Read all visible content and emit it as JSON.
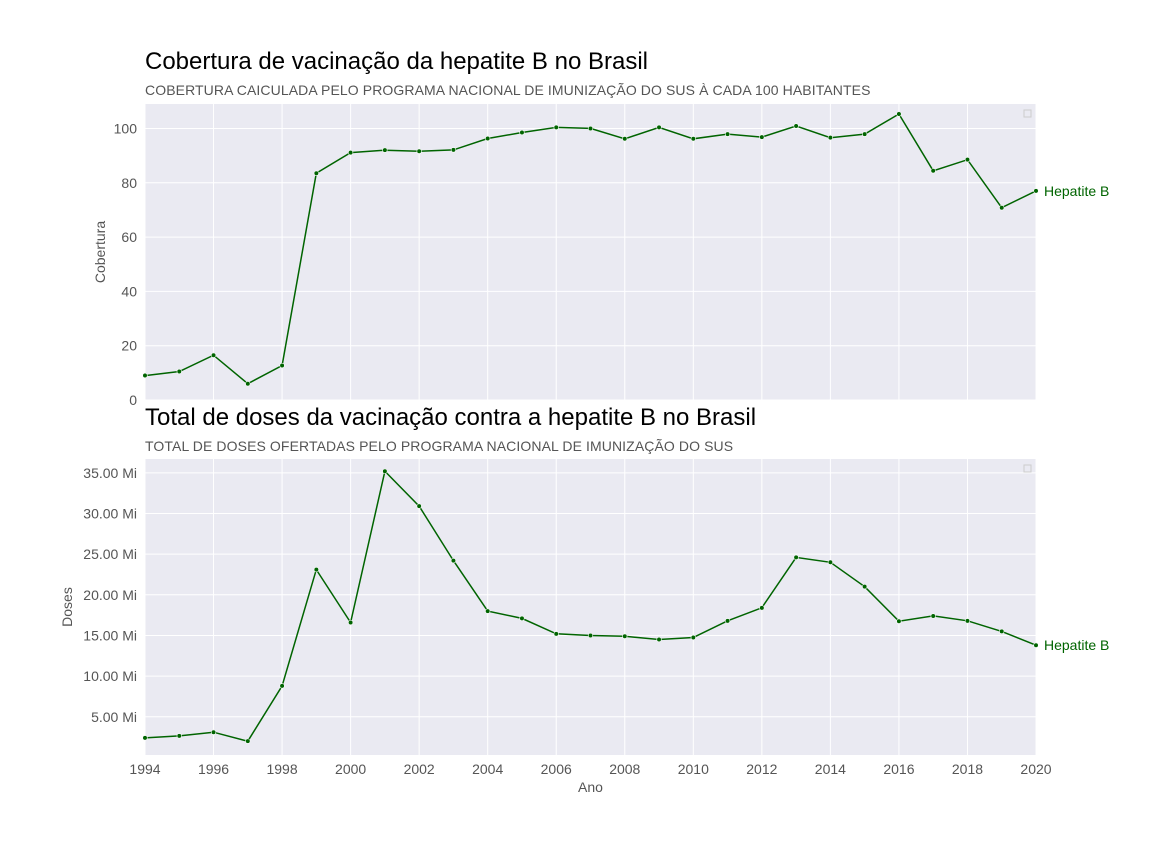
{
  "colors": {
    "series": "#006400",
    "panel": "#eaeaf2",
    "grid": "#ffffff"
  },
  "chart_data": [
    {
      "type": "line",
      "title": "Cobertura de vacinação da hepatite B no Brasil",
      "subtitle": "COBERTURA CAICULADA PELO PROGRAMA NACIONAL DE IMUNIZAÇÃO DO SUS À CADA 100 HABITANTES",
      "xlabel": "",
      "ylabel": "Cobertura",
      "xlim": [
        1994,
        2020
      ],
      "ylim": [
        0,
        109
      ],
      "yticks": [
        0,
        20,
        40,
        60,
        80,
        100
      ],
      "ytick_labels": [
        "0",
        "20",
        "40",
        "60",
        "80",
        "100"
      ],
      "grid": true,
      "legend": "top-right",
      "series": [
        {
          "name": "Hepatite B",
          "x": [
            1994,
            1995,
            1996,
            1997,
            1998,
            1999,
            2000,
            2001,
            2002,
            2003,
            2004,
            2005,
            2006,
            2007,
            2008,
            2009,
            2010,
            2011,
            2012,
            2013,
            2014,
            2015,
            2016,
            2017,
            2018,
            2019,
            2020
          ],
          "values": [
            9,
            10.5,
            16.5,
            6,
            12.7,
            83.5,
            91.1,
            92,
            91.6,
            92.1,
            96.3,
            98.5,
            100.4,
            100,
            96.2,
            100.4,
            96.2,
            97.9,
            96.8,
            100.9,
            96.6,
            97.9,
            105.3,
            84.4,
            88.5,
            70.8,
            77
          ]
        }
      ]
    },
    {
      "type": "line",
      "title": "Total de doses da vacinação contra a hepatite B no Brasil",
      "subtitle": "TOTAL DE DOSES OFERTADAS PELO PROGRAMA NACIONAL DE IMUNIZAÇÃO DO SUS",
      "xlabel": "Ano",
      "ylabel": "Doses",
      "xlim": [
        1994,
        2020
      ],
      "ylim": [
        0.3,
        36.7
      ],
      "xticks": [
        1994,
        1996,
        1998,
        2000,
        2002,
        2004,
        2006,
        2008,
        2010,
        2012,
        2014,
        2016,
        2018,
        2020
      ],
      "xtick_labels": [
        "1994",
        "1996",
        "1998",
        "2000",
        "2002",
        "2004",
        "2006",
        "2008",
        "2010",
        "2012",
        "2014",
        "2016",
        "2018",
        "2020"
      ],
      "yticks": [
        5,
        10,
        15,
        20,
        25,
        30,
        35
      ],
      "ytick_labels": [
        "5.00 Mi",
        "10.00 Mi",
        "15.00 Mi",
        "20.00 Mi",
        "25.00 Mi",
        "30.00 Mi",
        "35.00 Mi"
      ],
      "grid": true,
      "legend": "top-right",
      "series": [
        {
          "name": "Hepatite B",
          "x": [
            1994,
            1995,
            1996,
            1997,
            1998,
            1999,
            2000,
            2001,
            2002,
            2003,
            2004,
            2005,
            2006,
            2007,
            2008,
            2009,
            2010,
            2011,
            2012,
            2013,
            2014,
            2015,
            2016,
            2017,
            2018,
            2019,
            2020
          ],
          "values": [
            2.4,
            2.65,
            3.1,
            2.0,
            8.8,
            23.1,
            16.6,
            35.2,
            30.9,
            24.2,
            18.0,
            17.1,
            15.2,
            15.0,
            14.9,
            14.5,
            14.75,
            16.8,
            18.4,
            24.6,
            24.0,
            21.0,
            16.75,
            17.4,
            16.8,
            15.5,
            13.8
          ]
        }
      ]
    }
  ]
}
